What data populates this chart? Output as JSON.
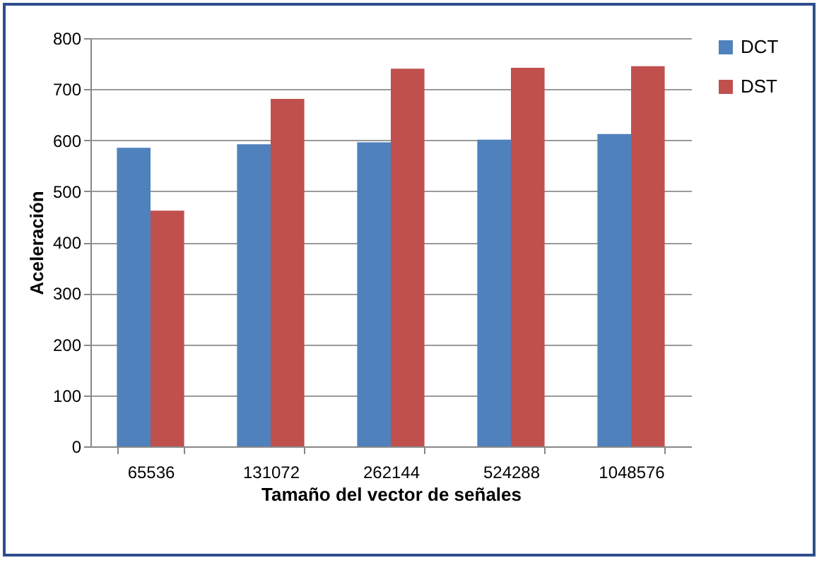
{
  "chart_data": {
    "type": "bar",
    "xlabel": "Tamaño del vector de señales",
    "ylabel": "Aceleración",
    "categories": [
      "65536",
      "131072",
      "262144",
      "524288",
      "1048576"
    ],
    "series": [
      {
        "name": "DCT",
        "color": "#4f81bd",
        "values": [
          585,
          592,
          596,
          601,
          612
        ]
      },
      {
        "name": "DST",
        "color": "#c0504d",
        "values": [
          462,
          681,
          740,
          742,
          745
        ]
      }
    ],
    "ylim": [
      0,
      800
    ],
    "yticks": [
      0,
      100,
      200,
      300,
      400,
      500,
      600,
      700,
      800
    ],
    "grid": "y",
    "legend": "right"
  }
}
